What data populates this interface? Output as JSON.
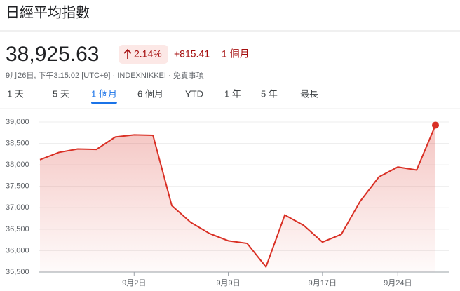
{
  "header": {
    "title": "日經平均指數",
    "price": "38,925.63",
    "change_pct": "2.14%",
    "change_abs": "+815.41",
    "period": "1 個月",
    "meta": "9月26日, 下午3:15:02 [UTC+9] · INDEXNIKKEI · 免責事項"
  },
  "tabs": {
    "items": [
      "1 天",
      "5 天",
      "1 個月",
      "6 個月",
      "YTD",
      "1 年",
      "5 年",
      "最長"
    ],
    "selected": 2
  },
  "chart_data": {
    "type": "line",
    "categories": [
      null,
      null,
      null,
      null,
      null,
      "9月2日",
      null,
      null,
      null,
      null,
      "9月9日",
      null,
      null,
      null,
      null,
      "9月17日",
      null,
      null,
      null,
      "9月24日",
      null,
      null
    ],
    "series": [
      {
        "color": "#d93025",
        "values": [
          38120,
          38290,
          38370,
          38360,
          38650,
          38700,
          38690,
          37050,
          36660,
          36400,
          36230,
          36170,
          35620,
          36830,
          36590,
          36200,
          36380,
          37150,
          37720,
          37950,
          37880,
          38925.63
        ]
      }
    ],
    "ylim": [
      35500,
      39000
    ],
    "yticks": [
      {
        "value": 35500,
        "label": "35,500"
      },
      {
        "value": 36000,
        "label": "36,000"
      },
      {
        "value": 36500,
        "label": "36,500"
      },
      {
        "value": 37000,
        "label": "37,000"
      },
      {
        "value": 37500,
        "label": "37,500"
      },
      {
        "value": 38000,
        "label": "38,000"
      },
      {
        "value": 38500,
        "label": "38,500"
      },
      {
        "value": 39000,
        "label": "39,000"
      }
    ],
    "grid": true
  }
}
